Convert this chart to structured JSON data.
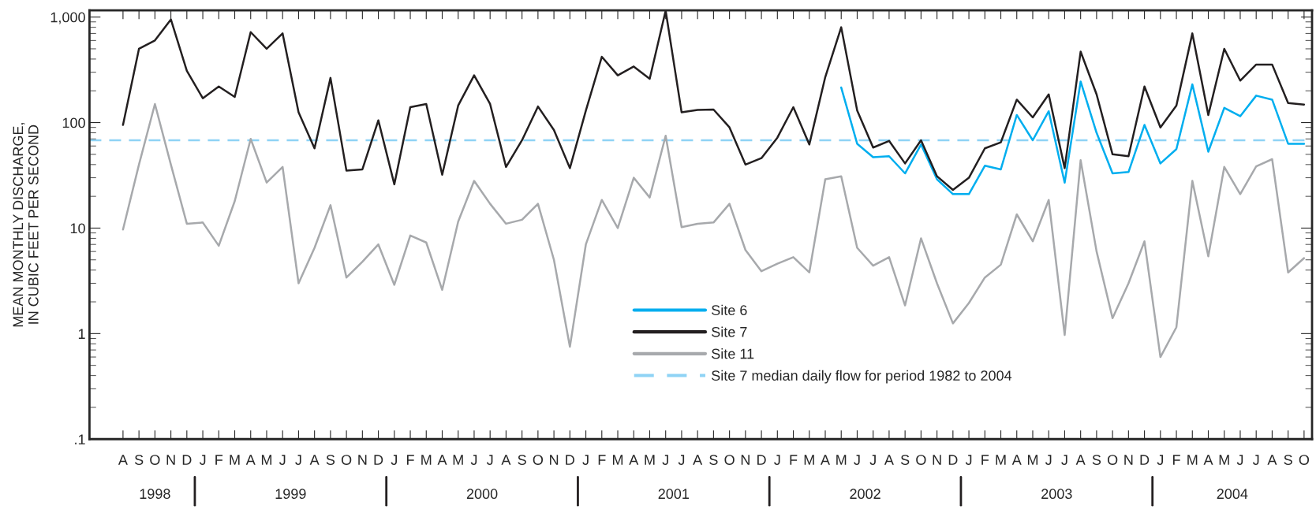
{
  "chart_data": {
    "type": "line",
    "ylabel": "MEAN MONTHLY DISCHARGE,\nIN CUBIC FEET PER SECOND",
    "categories": [
      "A",
      "S",
      "O",
      "N",
      "D",
      "J",
      "F",
      "M",
      "A",
      "M",
      "J",
      "J",
      "A",
      "S",
      "O",
      "N",
      "D",
      "J",
      "F",
      "M",
      "A",
      "M",
      "J",
      "J",
      "A",
      "S",
      "O",
      "N",
      "D",
      "J",
      "F",
      "M",
      "A",
      "M",
      "J",
      "J",
      "A",
      "S",
      "O",
      "N",
      "D",
      "J",
      "F",
      "M",
      "A",
      "M",
      "J",
      "J",
      "A",
      "S",
      "O",
      "N",
      "D",
      "J",
      "F",
      "M",
      "A",
      "M",
      "J",
      "J",
      "A",
      "S",
      "O",
      "N",
      "D",
      "J",
      "F",
      "M",
      "A",
      "M",
      "J",
      "J",
      "A",
      "S",
      "O"
    ],
    "series": [
      {
        "name": "Site 6",
        "color": "#00aeef",
        "values": [
          null,
          null,
          null,
          null,
          null,
          null,
          null,
          null,
          null,
          null,
          null,
          null,
          null,
          null,
          null,
          null,
          null,
          null,
          null,
          null,
          null,
          null,
          null,
          null,
          null,
          null,
          null,
          null,
          null,
          null,
          null,
          null,
          null,
          null,
          null,
          null,
          null,
          null,
          null,
          null,
          null,
          null,
          null,
          null,
          null,
          215,
          63,
          47,
          48,
          33,
          62,
          29,
          21,
          21,
          39,
          36,
          118,
          68,
          128,
          27,
          245,
          80,
          33,
          34,
          95,
          41,
          56,
          230,
          53,
          138,
          115,
          180,
          165,
          63,
          63
        ]
      },
      {
        "name": "Site 7",
        "color": "#231f20",
        "values": [
          95,
          500,
          600,
          950,
          310,
          170,
          220,
          175,
          720,
          500,
          700,
          125,
          57,
          265,
          35,
          36,
          105,
          26,
          140,
          150,
          32,
          145,
          280,
          150,
          38,
          68,
          142,
          85,
          37,
          130,
          420,
          280,
          340,
          260,
          1150,
          125,
          132,
          133,
          90,
          40,
          46,
          72,
          140,
          62,
          270,
          800,
          130,
          58,
          67,
          41,
          68,
          31,
          23,
          30,
          57,
          65,
          165,
          112,
          185,
          37,
          470,
          185,
          50,
          48,
          220,
          90,
          145,
          700,
          118,
          500,
          250,
          355,
          355,
          153,
          148
        ]
      },
      {
        "name": "Site 11",
        "color": "#a7a9ac",
        "values": [
          9.7,
          40,
          150,
          40,
          11,
          11.3,
          6.8,
          18,
          70,
          27,
          38,
          3.0,
          6.5,
          16.5,
          3.4,
          4.8,
          7,
          2.9,
          8.5,
          7.3,
          2.6,
          11.5,
          28,
          17,
          11,
          12,
          17,
          5,
          0.75,
          7,
          18.5,
          10,
          30,
          19.5,
          75,
          10.2,
          11,
          11.3,
          17,
          6.2,
          3.9,
          4.6,
          5.3,
          3.8,
          29,
          31,
          6.5,
          4.4,
          5.3,
          1.85,
          8,
          3,
          1.25,
          1.95,
          3.4,
          4.5,
          13.5,
          7.5,
          18.5,
          0.97,
          44,
          6,
          1.4,
          3,
          7.5,
          0.6,
          1.15,
          28,
          5.4,
          38,
          21,
          38.5,
          45,
          3.8,
          5.2
        ]
      }
    ],
    "ref_lines": [
      {
        "axis": "y",
        "value": 68,
        "label": "Site 7 median daily flow for period 1982 to 2004",
        "color": "#8fd3f5",
        "line_style": "dashed"
      }
    ],
    "log": "y",
    "ylim": [
      0.1,
      1160
    ],
    "yticks": [
      {
        "value": 0.1,
        "label": ".1"
      },
      1,
      10,
      100,
      {
        "value": 1000,
        "label": "1,000"
      }
    ],
    "annotations": [
      "1998",
      "1999",
      "2000",
      "2001",
      "2002",
      "2003",
      "2004"
    ],
    "legend": "bottom",
    "grid": false
  }
}
